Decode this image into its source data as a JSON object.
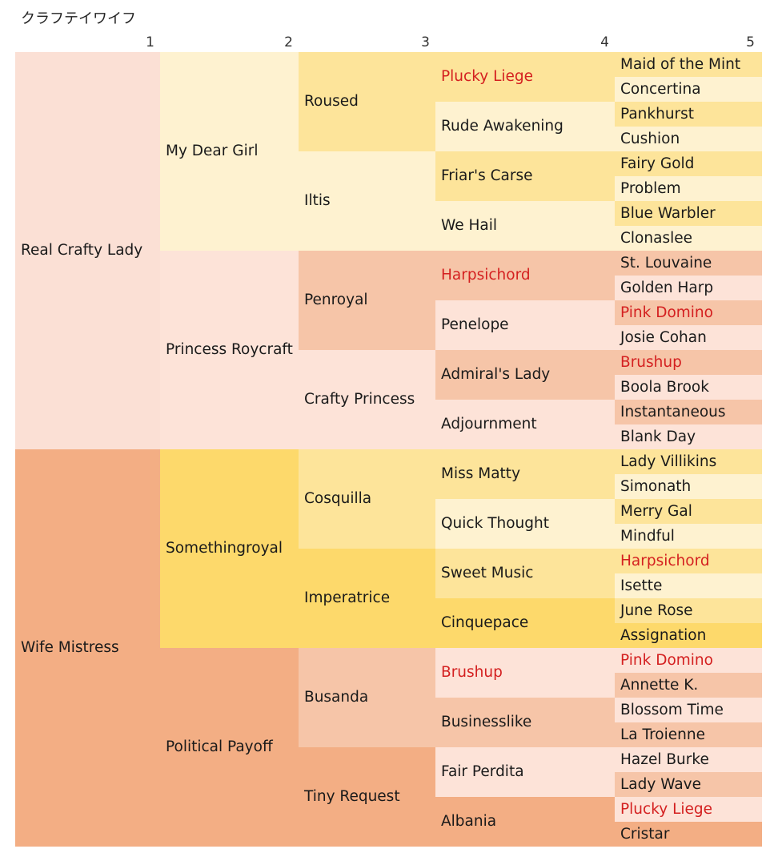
{
  "title": "クラフテイワイフ",
  "generations": [
    "1",
    "2",
    "3",
    "4",
    "5"
  ],
  "colors": {
    "sire_side": {
      "g1": "#fbe0d5",
      "light": "#fde3d8",
      "mid": "#f6c5a8",
      "dark": "#f2ad84"
    },
    "dam_side": {
      "light": "#fef2d0",
      "mid": "#fde49a",
      "dark": "#fcd86a"
    },
    "duplicate_text": "#d42020"
  },
  "pedigree": {
    "g1": [
      {
        "name": "Real Crafty Lady",
        "color": "#fbe0d5",
        "duplicate": false
      },
      {
        "name": "Wife Mistress",
        "color": "#f3ae84",
        "duplicate": false
      }
    ],
    "g2": [
      {
        "name": "My Dear Girl",
        "color": "#fef2d0",
        "duplicate": false
      },
      {
        "name": "Princess Roycraft",
        "color": "#fde3d8",
        "duplicate": false
      },
      {
        "name": "Somethingroyal",
        "color": "#fdd96b",
        "duplicate": false
      },
      {
        "name": "Political Payoff",
        "color": "#f3ae84",
        "duplicate": false
      }
    ],
    "g3": [
      {
        "name": "Roused",
        "color": "#fde49a",
        "duplicate": false
      },
      {
        "name": "Iltis",
        "color": "#fef2d0",
        "duplicate": false
      },
      {
        "name": "Penroyal",
        "color": "#f6c5a8",
        "duplicate": false
      },
      {
        "name": "Crafty Princess",
        "color": "#fde3d8",
        "duplicate": false
      },
      {
        "name": "Cosquilla",
        "color": "#fde49a",
        "duplicate": false
      },
      {
        "name": "Imperatrice",
        "color": "#fdd96b",
        "duplicate": false
      },
      {
        "name": "Busanda",
        "color": "#f6c5a8",
        "duplicate": false
      },
      {
        "name": "Tiny Request",
        "color": "#f3ae84",
        "duplicate": false
      }
    ],
    "g4": [
      {
        "name": "Plucky Liege",
        "color": "#fde49a",
        "duplicate": true
      },
      {
        "name": "Rude Awakening",
        "color": "#fef2d0",
        "duplicate": false
      },
      {
        "name": "Friar's Carse",
        "color": "#fde49a",
        "duplicate": false
      },
      {
        "name": "We Hail",
        "color": "#fef2d0",
        "duplicate": false
      },
      {
        "name": "Harpsichord",
        "color": "#f6c5a8",
        "duplicate": true
      },
      {
        "name": "Penelope",
        "color": "#fde3d8",
        "duplicate": false
      },
      {
        "name": "Admiral's Lady",
        "color": "#f6c5a8",
        "duplicate": false
      },
      {
        "name": "Adjournment",
        "color": "#fde3d8",
        "duplicate": false
      },
      {
        "name": "Miss Matty",
        "color": "#fde49a",
        "duplicate": false
      },
      {
        "name": "Quick Thought",
        "color": "#fef2d0",
        "duplicate": false
      },
      {
        "name": "Sweet Music",
        "color": "#fde49a",
        "duplicate": false
      },
      {
        "name": "Cinquepace",
        "color": "#fdd96b",
        "duplicate": false
      },
      {
        "name": "Brushup",
        "color": "#fde3d8",
        "duplicate": true
      },
      {
        "name": "Businesslike",
        "color": "#f6c5a8",
        "duplicate": false
      },
      {
        "name": "Fair Perdita",
        "color": "#fde3d8",
        "duplicate": false
      },
      {
        "name": "Albania",
        "color": "#f3ae84",
        "duplicate": false
      }
    ],
    "g5": [
      {
        "name": "Maid of the Mint",
        "color": "#fde49a",
        "duplicate": false
      },
      {
        "name": "Concertina",
        "color": "#fef2d0",
        "duplicate": false
      },
      {
        "name": "Pankhurst",
        "color": "#fde49a",
        "duplicate": false
      },
      {
        "name": "Cushion",
        "color": "#fef2d0",
        "duplicate": false
      },
      {
        "name": "Fairy Gold",
        "color": "#fde49a",
        "duplicate": false
      },
      {
        "name": "Problem",
        "color": "#fef2d0",
        "duplicate": false
      },
      {
        "name": "Blue Warbler",
        "color": "#fde49a",
        "duplicate": false
      },
      {
        "name": "Clonaslee",
        "color": "#fef2d0",
        "duplicate": false
      },
      {
        "name": "St. Louvaine",
        "color": "#f6c5a8",
        "duplicate": false
      },
      {
        "name": "Golden Harp",
        "color": "#fde3d8",
        "duplicate": false
      },
      {
        "name": "Pink Domino",
        "color": "#f6c5a8",
        "duplicate": true
      },
      {
        "name": "Josie Cohan",
        "color": "#fde3d8",
        "duplicate": false
      },
      {
        "name": "Brushup",
        "color": "#f6c5a8",
        "duplicate": true
      },
      {
        "name": "Boola Brook",
        "color": "#fde3d8",
        "duplicate": false
      },
      {
        "name": "Instantaneous",
        "color": "#f6c5a8",
        "duplicate": false
      },
      {
        "name": "Blank Day",
        "color": "#fde3d8",
        "duplicate": false
      },
      {
        "name": "Lady Villikins",
        "color": "#fde49a",
        "duplicate": false
      },
      {
        "name": "Simonath",
        "color": "#fef2d0",
        "duplicate": false
      },
      {
        "name": "Merry Gal",
        "color": "#fde49a",
        "duplicate": false
      },
      {
        "name": "Mindful",
        "color": "#fef2d0",
        "duplicate": false
      },
      {
        "name": "Harpsichord",
        "color": "#fde49a",
        "duplicate": true
      },
      {
        "name": "Isette",
        "color": "#fef2d0",
        "duplicate": false
      },
      {
        "name": "June Rose",
        "color": "#fde49a",
        "duplicate": false
      },
      {
        "name": "Assignation",
        "color": "#fdd96b",
        "duplicate": false
      },
      {
        "name": "Pink Domino",
        "color": "#fde3d8",
        "duplicate": true
      },
      {
        "name": "Annette K.",
        "color": "#f6c5a8",
        "duplicate": false
      },
      {
        "name": "Blossom Time",
        "color": "#fde3d8",
        "duplicate": false
      },
      {
        "name": "La Troienne",
        "color": "#f6c5a8",
        "duplicate": false
      },
      {
        "name": "Hazel Burke",
        "color": "#fde3d8",
        "duplicate": false
      },
      {
        "name": "Lady Wave",
        "color": "#f6c5a8",
        "duplicate": false
      },
      {
        "name": "Plucky Liege",
        "color": "#fde3d8",
        "duplicate": true
      },
      {
        "name": "Cristar",
        "color": "#f3ae84",
        "duplicate": false
      }
    ]
  }
}
